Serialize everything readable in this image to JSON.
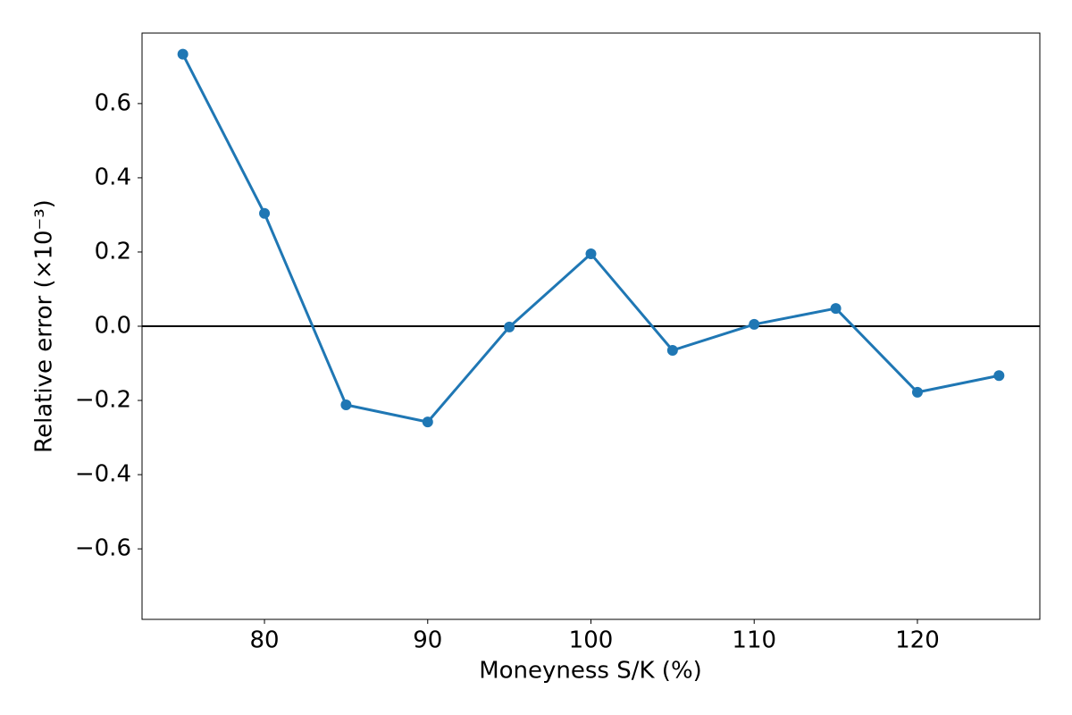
{
  "chart_data": {
    "type": "line",
    "x_label": "Moneyness S/K (%)",
    "y_label": "Relative error (×10⁻³)",
    "x": [
      75,
      80,
      85,
      90,
      95,
      100,
      105,
      110,
      115,
      120,
      125
    ],
    "series": [
      {
        "color": "#1f77b4",
        "values": [
          0.733,
          0.304,
          -0.212,
          -0.258,
          -0.002,
          0.195,
          -0.065,
          0.005,
          0.048,
          -0.178,
          -0.133
        ]
      }
    ],
    "xlim": [
      72.5,
      127.5
    ],
    "xticks": [
      80,
      90,
      100,
      110,
      120
    ],
    "ylim": [
      -0.79,
      0.79
    ],
    "yticks": [
      {
        "value": -0.6,
        "label": "−0.6"
      },
      {
        "value": -0.4,
        "label": "−0.4"
      },
      {
        "value": -0.2,
        "label": "−0.2"
      },
      {
        "value": 0,
        "label": "0.0"
      },
      0.2,
      0.4,
      0.6
    ],
    "reference_line": 0,
    "reference_color": "#000000"
  }
}
